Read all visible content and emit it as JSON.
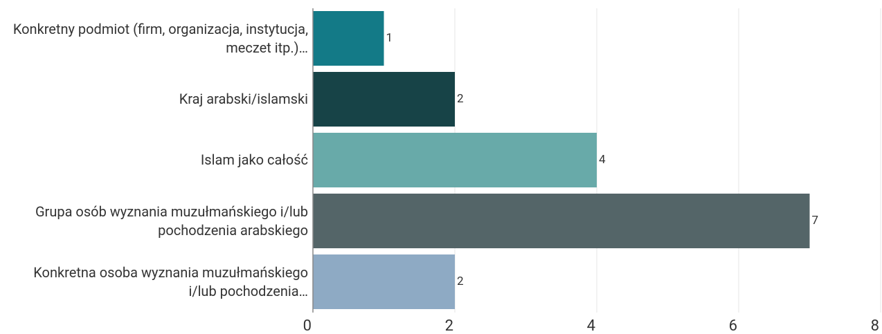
{
  "chart_data": {
    "type": "bar",
    "orientation": "horizontal",
    "categories": [
      "Konkretny podmiot (firm, organizacja, instytucja, meczet itp.)…",
      "Kraj arabski/islamski",
      "Islam jako całość",
      "Grupa osób wyznania muzułmańskiego i/lub pochodzenia arabskiego",
      "Konkretna osoba wyznania muzułmańskiego i/lub pochodzenia…"
    ],
    "values": [
      1,
      2,
      4,
      7,
      2
    ],
    "colors": [
      "#137a87",
      "#174347",
      "#68aaa9",
      "#546568",
      "#8eaac4"
    ],
    "xlim": [
      0,
      8
    ],
    "xticks": [
      0,
      2,
      4,
      6,
      8
    ],
    "grid": true
  }
}
